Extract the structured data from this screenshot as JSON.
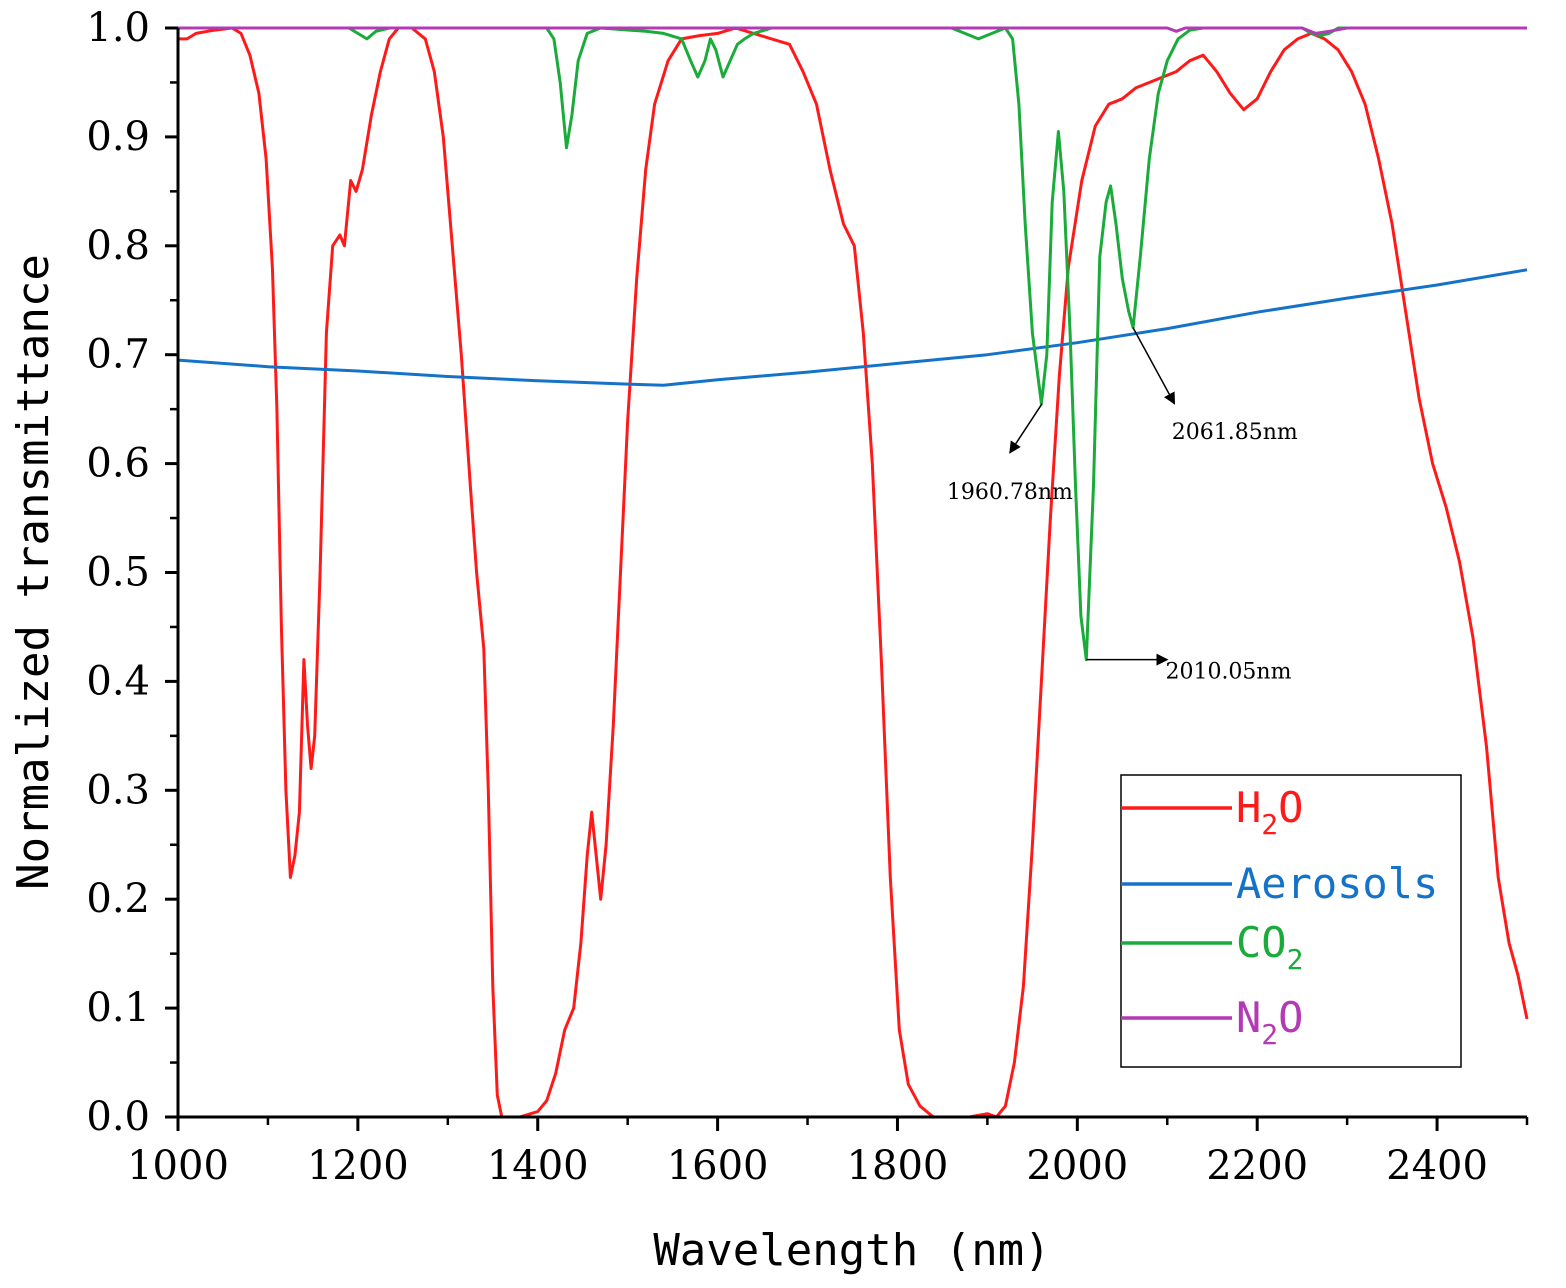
{
  "chart_data": {
    "type": "line",
    "title": "",
    "xlabel": "Wavelength (nm)",
    "ylabel": "Normalized transmittance",
    "xlim": [
      1000,
      2500
    ],
    "ylim": [
      0,
      1
    ],
    "grid": false,
    "x_ticks": [
      "1000",
      "1200",
      "1400",
      "1600",
      "1800",
      "2000",
      "2200",
      "2400"
    ],
    "x_tick_values": [
      1000,
      1200,
      1400,
      1600,
      1800,
      2000,
      2200,
      2400
    ],
    "y_ticks": [
      "0.0",
      "0.1",
      "0.2",
      "0.3",
      "0.4",
      "0.5",
      "0.6",
      "0.7",
      "0.8",
      "0.9",
      "1.0"
    ],
    "y_tick_values": [
      0,
      0.1,
      0.2,
      0.3,
      0.4,
      0.5,
      0.6,
      0.7,
      0.8,
      0.9,
      1.0
    ],
    "legend_position": "bottom-right",
    "series": [
      {
        "name": "H2O",
        "label_main": "H",
        "label_sub": "2",
        "label_tail": "O",
        "color": "#ff1a1a",
        "points": [
          [
            1000,
            0.99
          ],
          [
            1010,
            0.99
          ],
          [
            1020,
            0.995
          ],
          [
            1040,
            0.998
          ],
          [
            1060,
            1.0
          ],
          [
            1070,
            0.995
          ],
          [
            1080,
            0.975
          ],
          [
            1090,
            0.94
          ],
          [
            1098,
            0.88
          ],
          [
            1105,
            0.78
          ],
          [
            1110,
            0.65
          ],
          [
            1115,
            0.45
          ],
          [
            1120,
            0.3
          ],
          [
            1125,
            0.22
          ],
          [
            1130,
            0.24
          ],
          [
            1135,
            0.28
          ],
          [
            1140,
            0.42
          ],
          [
            1144,
            0.36
          ],
          [
            1148,
            0.32
          ],
          [
            1152,
            0.35
          ],
          [
            1158,
            0.5
          ],
          [
            1165,
            0.72
          ],
          [
            1172,
            0.8
          ],
          [
            1180,
            0.81
          ],
          [
            1185,
            0.8
          ],
          [
            1192,
            0.86
          ],
          [
            1198,
            0.85
          ],
          [
            1205,
            0.87
          ],
          [
            1215,
            0.92
          ],
          [
            1225,
            0.96
          ],
          [
            1235,
            0.99
          ],
          [
            1245,
            1.0
          ],
          [
            1260,
            1.0
          ],
          [
            1275,
            0.99
          ],
          [
            1285,
            0.96
          ],
          [
            1295,
            0.9
          ],
          [
            1305,
            0.8
          ],
          [
            1315,
            0.7
          ],
          [
            1325,
            0.58
          ],
          [
            1332,
            0.5
          ],
          [
            1340,
            0.43
          ],
          [
            1345,
            0.3
          ],
          [
            1350,
            0.12
          ],
          [
            1355,
            0.02
          ],
          [
            1360,
            0.0
          ],
          [
            1380,
            0.0
          ],
          [
            1400,
            0.005
          ],
          [
            1410,
            0.015
          ],
          [
            1420,
            0.04
          ],
          [
            1430,
            0.08
          ],
          [
            1440,
            0.1
          ],
          [
            1448,
            0.16
          ],
          [
            1455,
            0.24
          ],
          [
            1460,
            0.28
          ],
          [
            1465,
            0.24
          ],
          [
            1470,
            0.2
          ],
          [
            1476,
            0.25
          ],
          [
            1484,
            0.36
          ],
          [
            1492,
            0.5
          ],
          [
            1500,
            0.64
          ],
          [
            1510,
            0.77
          ],
          [
            1520,
            0.87
          ],
          [
            1530,
            0.93
          ],
          [
            1545,
            0.97
          ],
          [
            1560,
            0.99
          ],
          [
            1580,
            0.993
          ],
          [
            1600,
            0.995
          ],
          [
            1620,
            1.0
          ],
          [
            1640,
            0.995
          ],
          [
            1660,
            0.99
          ],
          [
            1680,
            0.985
          ],
          [
            1695,
            0.96
          ],
          [
            1710,
            0.93
          ],
          [
            1725,
            0.87
          ],
          [
            1740,
            0.82
          ],
          [
            1752,
            0.8
          ],
          [
            1762,
            0.72
          ],
          [
            1772,
            0.6
          ],
          [
            1782,
            0.42
          ],
          [
            1792,
            0.22
          ],
          [
            1802,
            0.08
          ],
          [
            1812,
            0.03
          ],
          [
            1825,
            0.01
          ],
          [
            1840,
            0.0
          ],
          [
            1880,
            0.0
          ],
          [
            1900,
            0.003
          ],
          [
            1910,
            0.0
          ],
          [
            1920,
            0.01
          ],
          [
            1930,
            0.05
          ],
          [
            1940,
            0.12
          ],
          [
            1950,
            0.25
          ],
          [
            1960,
            0.4
          ],
          [
            1970,
            0.55
          ],
          [
            1980,
            0.68
          ],
          [
            1990,
            0.78
          ],
          [
            2005,
            0.86
          ],
          [
            2020,
            0.91
          ],
          [
            2035,
            0.93
          ],
          [
            2050,
            0.935
          ],
          [
            2065,
            0.945
          ],
          [
            2080,
            0.95
          ],
          [
            2095,
            0.955
          ],
          [
            2110,
            0.96
          ],
          [
            2125,
            0.97
          ],
          [
            2140,
            0.975
          ],
          [
            2155,
            0.96
          ],
          [
            2170,
            0.94
          ],
          [
            2185,
            0.925
          ],
          [
            2200,
            0.935
          ],
          [
            2215,
            0.96
          ],
          [
            2230,
            0.98
          ],
          [
            2245,
            0.99
          ],
          [
            2260,
            0.995
          ],
          [
            2275,
            0.99
          ],
          [
            2290,
            0.98
          ],
          [
            2305,
            0.96
          ],
          [
            2320,
            0.93
          ],
          [
            2335,
            0.88
          ],
          [
            2350,
            0.82
          ],
          [
            2365,
            0.74
          ],
          [
            2380,
            0.66
          ],
          [
            2395,
            0.6
          ],
          [
            2410,
            0.56
          ],
          [
            2425,
            0.51
          ],
          [
            2440,
            0.44
          ],
          [
            2455,
            0.34
          ],
          [
            2468,
            0.22
          ],
          [
            2480,
            0.16
          ],
          [
            2490,
            0.13
          ],
          [
            2500,
            0.09
          ]
        ]
      },
      {
        "name": "Aerosols",
        "label_main": "Aerosols",
        "label_sub": "",
        "label_tail": "",
        "color": "#1473c9",
        "points": [
          [
            1000,
            0.695
          ],
          [
            1100,
            0.689
          ],
          [
            1200,
            0.685
          ],
          [
            1300,
            0.68
          ],
          [
            1400,
            0.676
          ],
          [
            1500,
            0.673
          ],
          [
            1540,
            0.672
          ],
          [
            1600,
            0.677
          ],
          [
            1700,
            0.684
          ],
          [
            1800,
            0.692
          ],
          [
            1900,
            0.7
          ],
          [
            2000,
            0.711
          ],
          [
            2100,
            0.724
          ],
          [
            2200,
            0.739
          ],
          [
            2300,
            0.752
          ],
          [
            2400,
            0.764
          ],
          [
            2500,
            0.778
          ]
        ]
      },
      {
        "name": "CO2",
        "label_main": "CO",
        "label_sub": "2",
        "label_tail": "",
        "color": "#1aab3a",
        "points": [
          [
            1000,
            1.0
          ],
          [
            1190,
            1.0
          ],
          [
            1200,
            0.995
          ],
          [
            1210,
            0.99
          ],
          [
            1220,
            0.997
          ],
          [
            1235,
            1.0
          ],
          [
            1410,
            1.0
          ],
          [
            1418,
            0.99
          ],
          [
            1425,
            0.95
          ],
          [
            1432,
            0.89
          ],
          [
            1438,
            0.92
          ],
          [
            1445,
            0.97
          ],
          [
            1455,
            0.995
          ],
          [
            1470,
            1.0
          ],
          [
            1520,
            0.997
          ],
          [
            1540,
            0.995
          ],
          [
            1560,
            0.99
          ],
          [
            1570,
            0.97
          ],
          [
            1578,
            0.955
          ],
          [
            1586,
            0.97
          ],
          [
            1592,
            0.99
          ],
          [
            1598,
            0.98
          ],
          [
            1606,
            0.955
          ],
          [
            1614,
            0.97
          ],
          [
            1622,
            0.985
          ],
          [
            1630,
            0.99
          ],
          [
            1640,
            0.995
          ],
          [
            1660,
            1.0
          ],
          [
            1860,
            1.0
          ],
          [
            1875,
            0.995
          ],
          [
            1890,
            0.99
          ],
          [
            1905,
            0.995
          ],
          [
            1920,
            1.0
          ],
          [
            1928,
            0.99
          ],
          [
            1935,
            0.93
          ],
          [
            1942,
            0.82
          ],
          [
            1950,
            0.72
          ],
          [
            1960,
            0.655
          ],
          [
            1966,
            0.7
          ],
          [
            1972,
            0.84
          ],
          [
            1979,
            0.905
          ],
          [
            1985,
            0.85
          ],
          [
            1992,
            0.72
          ],
          [
            1998,
            0.58
          ],
          [
            2004,
            0.46
          ],
          [
            2010,
            0.42
          ],
          [
            2018,
            0.58
          ],
          [
            2025,
            0.79
          ],
          [
            2032,
            0.84
          ],
          [
            2037,
            0.855
          ],
          [
            2043,
            0.82
          ],
          [
            2050,
            0.77
          ],
          [
            2057,
            0.74
          ],
          [
            2062,
            0.725
          ],
          [
            2070,
            0.79
          ],
          [
            2080,
            0.88
          ],
          [
            2090,
            0.94
          ],
          [
            2100,
            0.97
          ],
          [
            2112,
            0.99
          ],
          [
            2125,
            0.998
          ],
          [
            2140,
            1.0
          ],
          [
            2250,
            1.0
          ],
          [
            2260,
            0.995
          ],
          [
            2270,
            0.993
          ],
          [
            2280,
            0.995
          ],
          [
            2290,
            1.0
          ],
          [
            2500,
            1.0
          ]
        ]
      },
      {
        "name": "N2O",
        "label_main": "N",
        "label_sub": "2",
        "label_tail": "O",
        "color": "#b439b4",
        "points": [
          [
            1000,
            1.0
          ],
          [
            2100,
            1.0
          ],
          [
            2110,
            0.997
          ],
          [
            2120,
            1.0
          ],
          [
            2250,
            1.0
          ],
          [
            2265,
            0.995
          ],
          [
            2280,
            0.997
          ],
          [
            2300,
            1.0
          ],
          [
            2500,
            1.0
          ]
        ]
      }
    ],
    "annotations": [
      {
        "text": "1960.78nm",
        "point": [
          1960.78,
          0.655
        ],
        "arrow_to": [
          1925,
          0.61
        ],
        "text_at": [
          1925,
          0.575
        ],
        "anchor": "middle"
      },
      {
        "text": "2010.05nm",
        "point": [
          2010.05,
          0.42
        ],
        "arrow_to": [
          2100,
          0.42
        ],
        "text_at": [
          2098,
          0.41
        ],
        "anchor": "start"
      },
      {
        "text": "2061.85nm",
        "point": [
          2061.85,
          0.725
        ],
        "arrow_to": [
          2108,
          0.655
        ],
        "text_at": [
          2105,
          0.63
        ],
        "anchor": "start"
      }
    ]
  }
}
